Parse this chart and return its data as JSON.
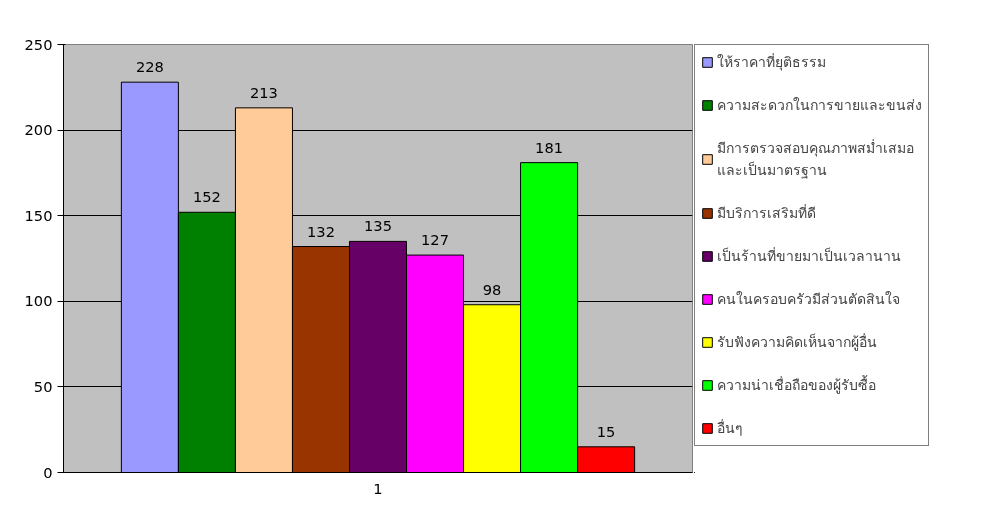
{
  "chart_data": {
    "type": "bar",
    "categories": [
      "1"
    ],
    "ylim": [
      0,
      250
    ],
    "yticks": [
      0,
      50,
      100,
      150,
      200,
      250
    ],
    "grid": "y",
    "legend": "right",
    "data_labels": true,
    "series": [
      {
        "name": "ให้ราคาที่ยุติธรรม",
        "color": "#9999ff",
        "values": [
          228
        ]
      },
      {
        "name": "ความสะดวกในการขายและขนส่ง",
        "color": "#008000",
        "values": [
          152
        ]
      },
      {
        "name": "มีการตรวจสอบคุณภาพสม่ำเสมอ\nและเป็นมาตรฐาน",
        "color": "#ffcc99",
        "values": [
          213
        ]
      },
      {
        "name": "มีบริการเสริมที่ดี",
        "color": "#993300",
        "values": [
          132
        ]
      },
      {
        "name": "เป็นร้านที่ขายมาเป็นเวลานาน",
        "color": "#660066",
        "values": [
          135
        ]
      },
      {
        "name": "คนในครอบครัวมีส่วนตัดสินใจ",
        "color": "#ff00ff",
        "values": [
          127
        ]
      },
      {
        "name": "รับฟังความคิดเห็นจากผู้อื่น",
        "color": "#ffff00",
        "values": [
          98
        ]
      },
      {
        "name": "ความน่าเชื่อถือของผู้รับซื้อ",
        "color": "#00ff00",
        "values": [
          181
        ]
      },
      {
        "name": "อื่นๆ",
        "color": "#ff0000",
        "values": [
          15
        ]
      }
    ]
  }
}
